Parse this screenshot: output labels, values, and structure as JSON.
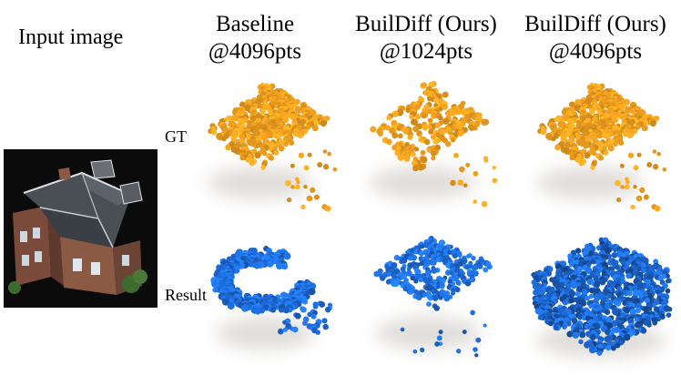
{
  "input_label": "Input image",
  "columns": [
    {
      "line1": "Baseline",
      "line2": "@4096pts"
    },
    {
      "line1": "BuilDiff (Ours)",
      "line2": "@1024pts"
    },
    {
      "line1": "BuilDiff (Ours)",
      "line2": "@4096pts"
    }
  ],
  "rows": [
    {
      "label": "GT"
    },
    {
      "label": "Result"
    }
  ],
  "colors": {
    "gt_points": "#f0a020",
    "result_points": "#1f6fe0",
    "background": "#ffffff"
  }
}
